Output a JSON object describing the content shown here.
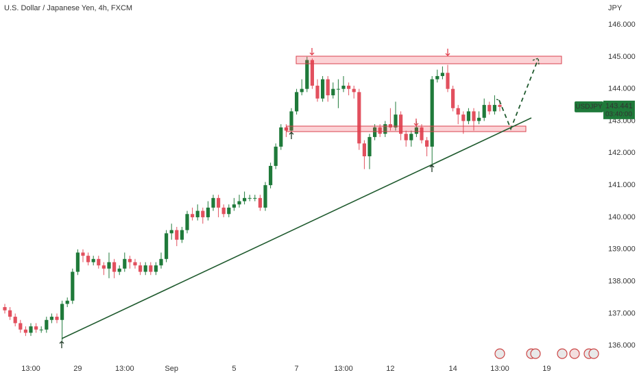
{
  "chart_data": {
    "type": "candlestick",
    "title": "U.S. Dollar / Japanese Yen, 4h, FXCM",
    "currency": "JPY",
    "symbol": "USDJPY",
    "last_price": 143.441,
    "countdown": "03:40:00",
    "up_color": "#1f7a3a",
    "down_color": "#e2505e",
    "ylim": [
      135.62,
      146.77
    ],
    "yticks": [
      {
        "value": 136,
        "label": "136.000"
      },
      {
        "value": 137,
        "label": "137.000"
      },
      {
        "value": 138,
        "label": "138.000"
      },
      {
        "value": 139,
        "label": "139.000"
      },
      {
        "value": 140,
        "label": "140.000"
      },
      {
        "value": 141,
        "label": "141.000"
      },
      {
        "value": 142,
        "label": "142.000"
      },
      {
        "value": 143,
        "label": "143.000"
      },
      {
        "value": 144,
        "label": "144.000"
      },
      {
        "value": 145,
        "label": "145.000"
      },
      {
        "value": 146,
        "label": "146.000"
      }
    ],
    "categories": [
      null,
      null,
      null,
      null,
      null,
      "13:00",
      null,
      null,
      null,
      null,
      null,
      null,
      null,
      null,
      "29",
      null,
      null,
      null,
      null,
      null,
      null,
      null,
      null,
      "13:00",
      null,
      null,
      null,
      null,
      null,
      null,
      null,
      null,
      "Sep",
      null,
      null,
      null,
      null,
      null,
      null,
      null,
      null,
      null,
      null,
      null,
      "5",
      null,
      null,
      null,
      null,
      null,
      null,
      null,
      null,
      null,
      null,
      null,
      "7",
      null,
      null,
      null,
      null,
      null,
      null,
      null,
      null,
      "13:00",
      null,
      null,
      null,
      null,
      null,
      null,
      null,
      null,
      "12",
      null,
      null,
      null,
      null,
      null,
      null,
      null,
      null,
      null,
      null,
      null,
      "14",
      null,
      null,
      null,
      null,
      null,
      null,
      null,
      null,
      "13:00",
      null,
      null,
      null,
      null,
      null,
      null,
      null,
      null,
      "19"
    ],
    "open": [
      137.2,
      137.1,
      136.9,
      136.7,
      136.5,
      136.4,
      136.6,
      136.5,
      136.5,
      136.8,
      136.9,
      136.8,
      137.3,
      137.4,
      138.3,
      138.9,
      138.8,
      138.6,
      138.7,
      138.5,
      138.4,
      138.6,
      138.3,
      138.4,
      138.7,
      138.6,
      138.5,
      138.3,
      138.5,
      138.3,
      138.5,
      138.7,
      139.5,
      139.6,
      139.3,
      139.6,
      140.1,
      140.0,
      140.2,
      140.0,
      140.3,
      140.6,
      140.3,
      140.1,
      140.3,
      140.4,
      140.5,
      140.6,
      140.6,
      140.6,
      140.3,
      141.0,
      141.6,
      142.2,
      142.8,
      142.7,
      143.3,
      143.9,
      144.0,
      144.9,
      144.1,
      143.7,
      144.3,
      143.8,
      144.0,
      144.0,
      144.1,
      144.0,
      143.9,
      142.3,
      141.9,
      142.5,
      142.8,
      142.6,
      142.9,
      142.8,
      143.2,
      142.6,
      142.4,
      142.6,
      142.8,
      142.4,
      142.2,
      144.3,
      144.4,
      144.5,
      144.0,
      143.4,
      143.2,
      143.0,
      143.3,
      143.0,
      143.1,
      143.5,
      143.3,
      143.5,
      null,
      null,
      null,
      null,
      null,
      null,
      null,
      null,
      null
    ],
    "high": [
      137.3,
      137.2,
      137.0,
      136.8,
      136.6,
      136.7,
      136.7,
      136.6,
      136.9,
      137.0,
      137.0,
      137.4,
      137.5,
      138.4,
      139.0,
      139.0,
      138.9,
      138.8,
      138.8,
      138.6,
      138.9,
      138.7,
      138.5,
      138.9,
      138.8,
      138.7,
      138.6,
      138.6,
      138.6,
      138.6,
      138.9,
      139.6,
      139.8,
      139.7,
      139.7,
      140.2,
      140.3,
      140.4,
      140.3,
      140.5,
      140.7,
      140.7,
      140.4,
      140.4,
      140.6,
      140.7,
      140.8,
      140.7,
      140.7,
      140.7,
      141.1,
      141.7,
      142.3,
      142.9,
      142.9,
      143.4,
      144.0,
      144.3,
      145.0,
      144.95,
      144.3,
      144.4,
      144.4,
      144.2,
      144.3,
      144.4,
      144.2,
      144.1,
      144.0,
      142.4,
      142.6,
      142.9,
      142.9,
      143.0,
      143.4,
      143.6,
      143.3,
      142.7,
      142.7,
      143.0,
      142.9,
      142.5,
      144.4,
      144.6,
      144.7,
      144.75,
      144.1,
      143.5,
      143.3,
      143.4,
      143.4,
      143.3,
      143.7,
      143.6,
      143.8,
      143.6,
      null,
      null,
      null,
      null,
      null,
      null,
      null,
      null,
      null
    ],
    "low": [
      137.0,
      136.8,
      136.6,
      136.4,
      136.3,
      136.3,
      136.4,
      136.4,
      136.4,
      136.7,
      136.7,
      136.15,
      137.2,
      137.3,
      138.2,
      138.6,
      138.5,
      138.5,
      138.4,
      138.2,
      138.1,
      138.1,
      138.2,
      138.3,
      138.4,
      138.4,
      138.2,
      138.2,
      138.2,
      138.2,
      138.4,
      138.6,
      139.3,
      139.1,
      139.2,
      139.5,
      139.9,
      139.9,
      139.8,
      139.9,
      140.2,
      140.0,
      140.0,
      140.0,
      140.2,
      140.3,
      140.4,
      140.5,
      140.5,
      140.2,
      140.2,
      140.9,
      141.5,
      142.1,
      142.5,
      142.6,
      143.2,
      143.8,
      143.9,
      144.0,
      143.6,
      143.6,
      143.6,
      143.7,
      143.4,
      143.9,
      143.8,
      143.7,
      142.1,
      141.5,
      141.5,
      142.4,
      142.5,
      142.5,
      142.7,
      142.7,
      142.4,
      142.2,
      142.2,
      142.5,
      142.3,
      141.9,
      141.65,
      144.2,
      144.3,
      143.9,
      143.3,
      142.9,
      142.6,
      142.9,
      142.7,
      142.9,
      143.0,
      143.2,
      143.2,
      143.3,
      null,
      null,
      null,
      null,
      null,
      null,
      null,
      null,
      null
    ],
    "close": [
      137.1,
      136.9,
      136.7,
      136.5,
      136.4,
      136.6,
      136.5,
      136.5,
      136.8,
      136.9,
      136.8,
      137.3,
      137.4,
      138.3,
      138.9,
      138.8,
      138.6,
      138.7,
      138.5,
      138.4,
      138.6,
      138.3,
      138.4,
      138.7,
      138.6,
      138.5,
      138.3,
      138.5,
      138.3,
      138.5,
      138.7,
      139.5,
      139.6,
      139.3,
      139.6,
      140.1,
      140.0,
      140.2,
      140.0,
      140.3,
      140.6,
      140.3,
      140.1,
      140.3,
      140.4,
      140.5,
      140.6,
      140.6,
      140.6,
      140.3,
      141.0,
      141.6,
      142.2,
      142.8,
      142.7,
      143.3,
      143.9,
      144.0,
      144.9,
      144.1,
      143.7,
      144.3,
      143.8,
      144.0,
      144.0,
      144.1,
      144.0,
      143.9,
      142.3,
      141.9,
      142.5,
      142.8,
      142.6,
      142.9,
      142.8,
      143.2,
      142.6,
      142.4,
      142.6,
      142.8,
      142.4,
      142.2,
      144.3,
      144.4,
      144.5,
      144.0,
      143.4,
      143.2,
      143.0,
      143.3,
      143.0,
      143.1,
      143.5,
      143.3,
      143.5,
      143.44,
      null,
      null,
      null,
      null,
      null,
      null,
      null,
      null,
      null
    ]
  }
}
